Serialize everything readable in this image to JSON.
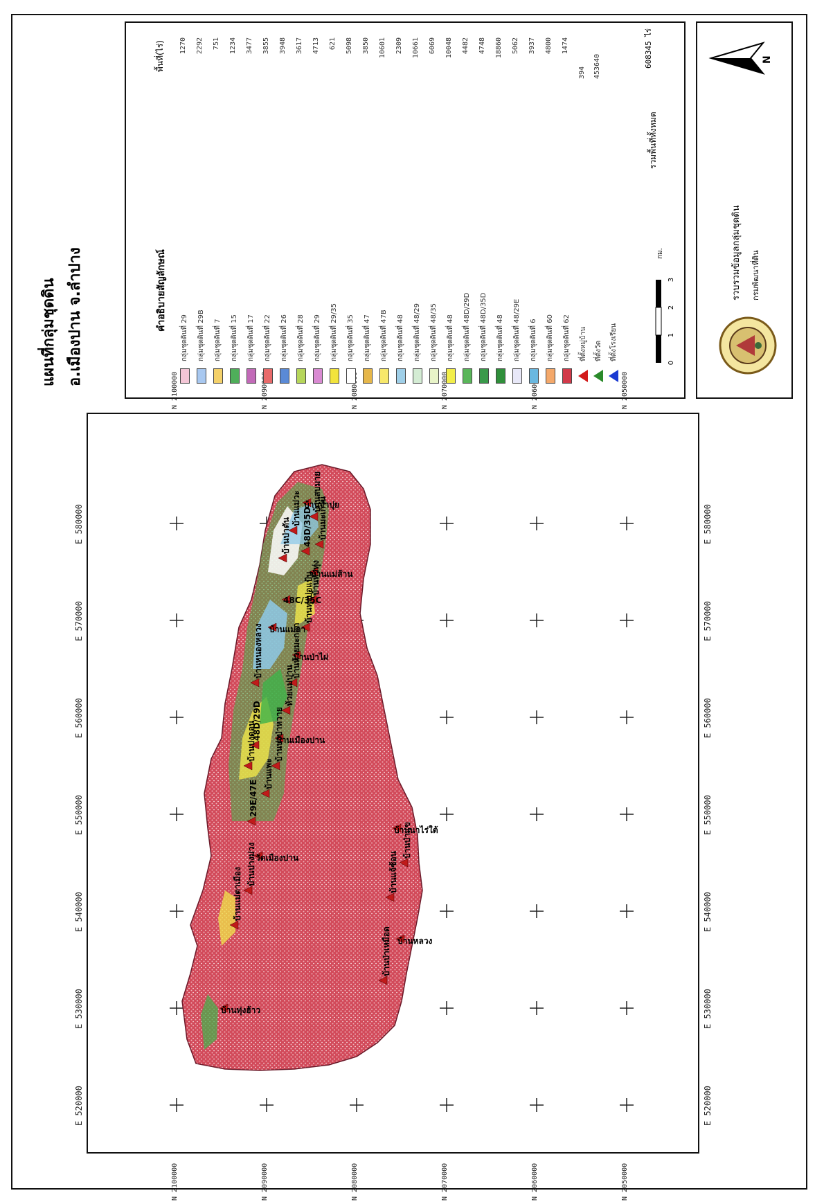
{
  "title": {
    "line1": "แผนที่กลุ่มชุดดิน",
    "line2": "อ.เมืองปาน จ.ลำปาง"
  },
  "map": {
    "x_ticks": [
      "E 520000",
      "E 530000",
      "E 540000",
      "E 550000",
      "E 560000",
      "E 570000",
      "E 580000"
    ],
    "y_ticks": [
      "N 2050000",
      "N 2060000",
      "N 2070000",
      "N 2080000",
      "N 2090000",
      "N 2100000"
    ],
    "colors": {
      "base": "#d23a4a",
      "mix1": "#3fb34a",
      "mix2": "#f0e64a",
      "mix3": "#8ec9e8",
      "mix4": "#ffffff"
    },
    "place_names": [
      "บ้านป่าเหมือด",
      "บ้านหลวง",
      "บ้านแจ้ซ้อน",
      "บ้านป่าแข",
      "บ้านนาไร่ใต้",
      "บ้านแม่ตาเมือง",
      "บ้านปางม่วง",
      "วัดเมืองปาน",
      "บ้านแพะ",
      "บ้านปงป่าหวาย",
      "บ้านเมืองปาน",
      "ห้วยแม่ปาน",
      "บ้านห้วยมะกอก",
      "บ้านป่าไผ่",
      "บ้านทุ่งบ่อแป้น",
      "บ้านหัวทุ่ง",
      "บ้านแม่ส้าน",
      "บ้านมะเกว๋น",
      "บ้านสบมาย",
      "บ้านทุ่งฮ้าว",
      "บ้านปงดอน",
      "บ้านหนองหลวง",
      "บ้านแม่กา",
      "บ้านป่าตัน",
      "บ้านแม่วะ",
      "บ้านจำปุย",
      "29E/47E",
      "48D/29D",
      "48C/35C",
      "48D/35D"
    ]
  },
  "legend": {
    "title": "คำอธิบายสัญลักษณ์",
    "value_header": "พื้นที่(ไร่)",
    "items": [
      {
        "label": "กลุ่มชุดดินที่ 29",
        "value": "1270",
        "color": "#f4c6d6"
      },
      {
        "label": "กลุ่มชุดดินที่ 29B",
        "value": "2292",
        "color": "#a8c8f0"
      },
      {
        "label": "กลุ่มชุดดินที่ 7",
        "value": "751",
        "color": "#f4d16a"
      },
      {
        "label": "กลุ่มชุดดินที่ 15",
        "value": "1234",
        "color": "#4fae5a"
      },
      {
        "label": "กลุ่มชุดดินที่ 17",
        "value": "3477",
        "color": "#c26ab8"
      },
      {
        "label": "กลุ่มชุดดินที่ 22",
        "value": "3855",
        "color": "#e86a6a"
      },
      {
        "label": "กลุ่มชุดดินที่ 26",
        "value": "3948",
        "color": "#5a8ad6"
      },
      {
        "label": "กลุ่มชุดดินที่ 28",
        "value": "3617",
        "color": "#b6d65a"
      },
      {
        "label": "กลุ่มชุดดินที่ 29",
        "value": "4713",
        "color": "#d98ad2"
      },
      {
        "label": "กลุ่มชุดดินที่ 29/35",
        "value": "621",
        "color": "#f2e43c"
      },
      {
        "label": "กลุ่มชุดดินที่ 35",
        "value": "5098",
        "color": "#ffffff"
      },
      {
        "label": "กลุ่มชุดดินที่ 47",
        "value": "3850",
        "color": "#e6b74a"
      },
      {
        "label": "กลุ่มชุดดินที่ 47B",
        "value": "10601",
        "color": "#f7e86a"
      },
      {
        "label": "กลุ่มชุดดินที่ 48",
        "value": "2309",
        "color": "#9fcfe8"
      },
      {
        "label": "กลุ่มชุดดินที่ 48/29",
        "value": "10661",
        "color": "#d4ecd4"
      },
      {
        "label": "กลุ่มชุดดินที่ 48/35",
        "value": "6069",
        "color": "#e8f4c8"
      },
      {
        "label": "กลุ่มชุดดินที่ 48",
        "value": "10048",
        "color": "#f2ee4a"
      },
      {
        "label": "กลุ่มชุดดินที่ 48D/29D",
        "value": "4482",
        "color": "#5ab65a"
      },
      {
        "label": "กลุ่มชุดดินที่ 48D/35D",
        "value": "4748",
        "color": "#3a9a4a"
      },
      {
        "label": "กลุ่มชุดดินที่ 48",
        "value": "18860",
        "color": "#2f8f3a"
      },
      {
        "label": "กลุ่มชุดดินที่ 48/29E",
        "value": "5062",
        "color": "#e8e8f8"
      },
      {
        "label": "กลุ่มชุดดินที่ 6",
        "value": "3937",
        "color": "#6ab8e0"
      },
      {
        "label": "กลุ่มชุดดินที่ 60",
        "value": "4800",
        "color": "#f4a86a"
      },
      {
        "label": "กลุ่มชุดดินที่ 62",
        "value": "1474",
        "color": "#d23a4a"
      }
    ],
    "symbols": [
      {
        "label": "ที่ตั้งหมู่บ้าน",
        "value": "394",
        "color": "#d21a1a"
      },
      {
        "label": "ที่ตั้งวัด",
        "value": "453640",
        "color": "#2a8a2a"
      },
      {
        "label": "ที่ตั้งโรงเรียน",
        "color": "#1a3ad2"
      }
    ],
    "total_label": "รวมพื้นที่ทั้งหมด",
    "total_value": "608345 ไร่"
  },
  "scalebar": {
    "ticks": [
      "0",
      "1",
      "2",
      "3"
    ],
    "unit": "กม."
  },
  "north_label": "N",
  "credit": {
    "line1": "รวบรวมข้อมูลกลุ่มชุดดิน",
    "line2": "กรมพัฒนาที่ดิน"
  }
}
